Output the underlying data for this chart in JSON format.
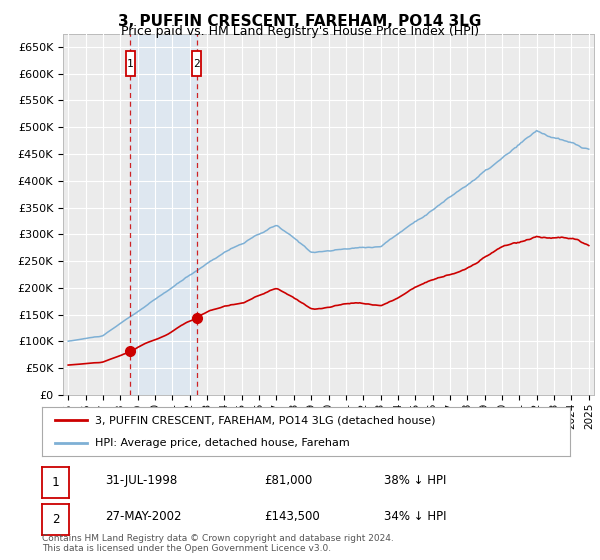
{
  "title": "3, PUFFIN CRESCENT, FAREHAM, PO14 3LG",
  "subtitle": "Price paid vs. HM Land Registry's House Price Index (HPI)",
  "yticks": [
    0,
    50000,
    100000,
    150000,
    200000,
    250000,
    300000,
    350000,
    400000,
    450000,
    500000,
    550000,
    600000,
    650000
  ],
  "ytick_labels": [
    "£0",
    "£50K",
    "£100K",
    "£150K",
    "£200K",
    "£250K",
    "£300K",
    "£350K",
    "£400K",
    "£450K",
    "£500K",
    "£550K",
    "£600K",
    "£650K"
  ],
  "ylim": [
    0,
    675000
  ],
  "background_color": "#ffffff",
  "plot_bg_color": "#ebebeb",
  "grid_color": "#ffffff",
  "transaction1": {
    "date_num": 1998.58,
    "price": 81000,
    "label": "1",
    "date_str": "31-JUL-1998",
    "pct": "38% ↓ HPI"
  },
  "transaction2": {
    "date_num": 2002.4,
    "price": 143500,
    "label": "2",
    "date_str": "27-MAY-2002",
    "pct": "34% ↓ HPI"
  },
  "legend_house": "3, PUFFIN CRESCENT, FAREHAM, PO14 3LG (detached house)",
  "legend_hpi": "HPI: Average price, detached house, Fareham",
  "footnote": "Contains HM Land Registry data © Crown copyright and database right 2024.\nThis data is licensed under the Open Government Licence v3.0.",
  "house_line_color": "#cc0000",
  "hpi_line_color": "#7eb0d5",
  "marker_color": "#cc0000",
  "vline_color": "#cc0000",
  "shade_color": "#d0e4f7",
  "box_color": "#cc0000",
  "xmin": 1994.7,
  "xmax": 2025.3,
  "xtick_years": [
    1995,
    1996,
    1997,
    1998,
    1999,
    2000,
    2001,
    2002,
    2003,
    2004,
    2005,
    2006,
    2007,
    2008,
    2009,
    2010,
    2011,
    2012,
    2013,
    2014,
    2015,
    2016,
    2017,
    2018,
    2019,
    2020,
    2021,
    2022,
    2023,
    2024,
    2025
  ]
}
